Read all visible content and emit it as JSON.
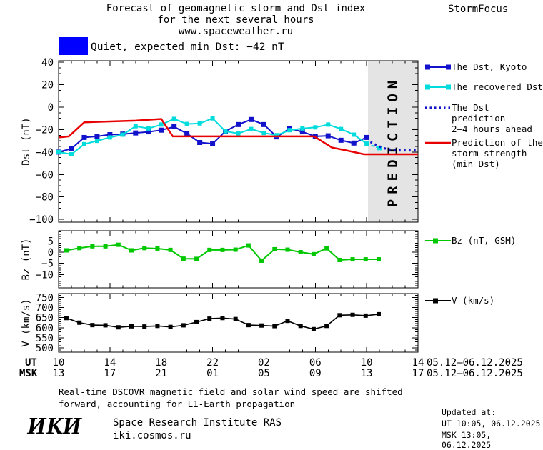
{
  "header": {
    "title_line1": "Forecast of geomagnetic storm and Dst index",
    "title_line2": "for the next several hours",
    "title_line3": "www.spaceweather.ru",
    "brand": "StormFocus"
  },
  "status": {
    "label": "Quiet, expected min Dst: −42 nT",
    "swatch_color": "#0000ff"
  },
  "legend": {
    "items": [
      {
        "label_lines": [
          "The Dst, Kyoto"
        ],
        "color": "#1212cc",
        "style": "solid-squares"
      },
      {
        "label_lines": [
          "The recovered Dst"
        ],
        "color": "#00dcdc",
        "style": "solid-squares"
      },
      {
        "label_lines": [
          "The Dst prediction",
          "2–4 hours ahead"
        ],
        "color": "#1212cc",
        "style": "dotted"
      },
      {
        "label_lines": [
          "Prediction of the",
          "storm strength",
          "(min Dst)"
        ],
        "color": "#e80000",
        "style": "solid"
      }
    ],
    "bz": {
      "label_lines": [
        "Bz (nT, GSM)"
      ],
      "color": "#00c800",
      "style": "solid-square-mid"
    },
    "v": {
      "label_lines": [
        "V (km/s)"
      ],
      "color": "#000000",
      "style": "solid-square-mid"
    }
  },
  "chart_data": [
    {
      "type": "line",
      "id": "dst-panel",
      "title": "Dst index: observed, recovered and predicted",
      "ylabel": "Dst (nT)",
      "ylim": [
        -100,
        40
      ],
      "yticks": [
        40,
        20,
        0,
        -20,
        -40,
        -60,
        -80,
        -100
      ],
      "x_unit": "hours from 10:00 UT 05.12.2025, span 28 h",
      "prediction_region": {
        "x_start_hour": 24.1,
        "x_end_hour": 28,
        "label": "PREDICTION"
      },
      "series": [
        {
          "id": "dst-kyoto-series",
          "name": "The Dst, Kyoto",
          "color": "#1212cc",
          "width": 2,
          "marker_size": 7,
          "x_start_hour": 0,
          "x_step_hours": 1,
          "values": [
            -40,
            -37,
            -27,
            -26,
            -24.5,
            -24,
            -23,
            -22,
            -20.5,
            -17.5,
            -23.5,
            -31.5,
            -32.5,
            -21.5,
            -15.5,
            -11,
            -15.5,
            -26.5,
            -19,
            -22,
            -26,
            -25.5,
            -29.5,
            -32,
            -27
          ]
        },
        {
          "id": "recovered-dst-series",
          "name": "The recovered Dst",
          "color": "#00dcdc",
          "width": 2,
          "marker_size": 6,
          "x_start_hour": 0,
          "x_step_hours": 1,
          "dash_from_index": 24,
          "values": [
            -40,
            -42,
            -33,
            -30,
            -27,
            -24.5,
            -17,
            -19,
            -15.5,
            -10.5,
            -15,
            -14.5,
            -10,
            -21.5,
            -23.5,
            -19.5,
            -23,
            -25,
            -20.5,
            -19,
            -18,
            -15.5,
            -19.5,
            -24.5,
            -32.5,
            -36.5
          ]
        },
        {
          "id": "dst-prediction-series",
          "name": "The Dst prediction 2–4 hours ahead",
          "color": "#1212cc",
          "width": 3.2,
          "dash": "2.5 4.5",
          "points": [
            [
              24.3,
              -31
            ],
            [
              24.8,
              -34
            ],
            [
              25.3,
              -36.5
            ],
            [
              25.9,
              -38
            ],
            [
              26.4,
              -38.5
            ],
            [
              28,
              -38.5
            ]
          ]
        },
        {
          "id": "storm-strength-prediction-series",
          "name": "Prediction of the storm strength (min Dst)",
          "color": "#e80000",
          "width": 2.5,
          "points": [
            [
              0,
              -27
            ],
            [
              0.8,
              -26
            ],
            [
              2,
              -13.5
            ],
            [
              6,
              -12
            ],
            [
              8,
              -10.5
            ],
            [
              8.9,
              -26
            ],
            [
              19.9,
              -26
            ],
            [
              21.3,
              -36
            ],
            [
              22.4,
              -38.5
            ],
            [
              23.8,
              -42
            ],
            [
              28,
              -42
            ]
          ]
        }
      ]
    },
    {
      "type": "line",
      "id": "bz-panel",
      "title": "Interplanetary magnetic field Bz",
      "ylabel": "Bz (nT)",
      "ylim": [
        -15,
        9
      ],
      "yticks": [
        5,
        0,
        -5,
        -10
      ],
      "series": [
        {
          "id": "bz-series",
          "name": "Bz (nT, GSM)",
          "color": "#00c800",
          "width": 2,
          "marker_size": 6,
          "x_start_hour": 0.61,
          "x_step_hours": 1.0136,
          "values": [
            0.8,
            1.8,
            2.6,
            2.6,
            3.3,
            0.8,
            1.8,
            1.6,
            1.0,
            -2.9,
            -3.0,
            1.0,
            1.0,
            1.1,
            3.0,
            -3.8,
            1.3,
            1.1,
            0.0,
            -0.9,
            1.7,
            -3.5,
            -3.2,
            -3.2,
            -3.2
          ]
        }
      ]
    },
    {
      "type": "line",
      "id": "v-panel",
      "title": "Solar wind speed",
      "ylabel": "V (km/s)",
      "ylim": [
        480,
        770
      ],
      "yticks": [
        750,
        700,
        650,
        600,
        550,
        500
      ],
      "series": [
        {
          "id": "v-series",
          "name": "V (km/s)",
          "color": "#000000",
          "width": 1.6,
          "marker_size": 6,
          "x_start_hour": 0.61,
          "x_step_hours": 1.0136,
          "values": [
            648,
            625,
            613,
            612,
            602,
            607,
            606,
            609,
            604,
            612,
            628,
            645,
            648,
            643,
            613,
            611,
            608,
            634,
            609,
            593,
            609,
            662,
            664,
            660,
            667
          ]
        }
      ]
    }
  ],
  "xaxis": {
    "ut_row_label": "UT",
    "msk_row_label": "MSK",
    "ut_ticks": [
      "10",
      "14",
      "18",
      "22",
      "02",
      "06",
      "10",
      "14"
    ],
    "msk_ticks": [
      "13",
      "17",
      "21",
      "01",
      "05",
      "09",
      "13",
      "17"
    ],
    "ut_date": "05.12–06.12.2025",
    "msk_date": "05.12–06.12.2025"
  },
  "footer": {
    "note_line1": "Real-time DSCOVR magnetic field and solar wind speed are shifted",
    "note_line2": "forward, accounting for L1-Earth propagation",
    "logo_text": "ИКИ",
    "institute": "Space Research Institute RAS",
    "website": "iki.cosmos.ru",
    "updated_label": "Updated at:",
    "updated_ut": "UT  10:05, 06.12.2025",
    "updated_msk": "MSK 13:05, 06.12.2025"
  }
}
